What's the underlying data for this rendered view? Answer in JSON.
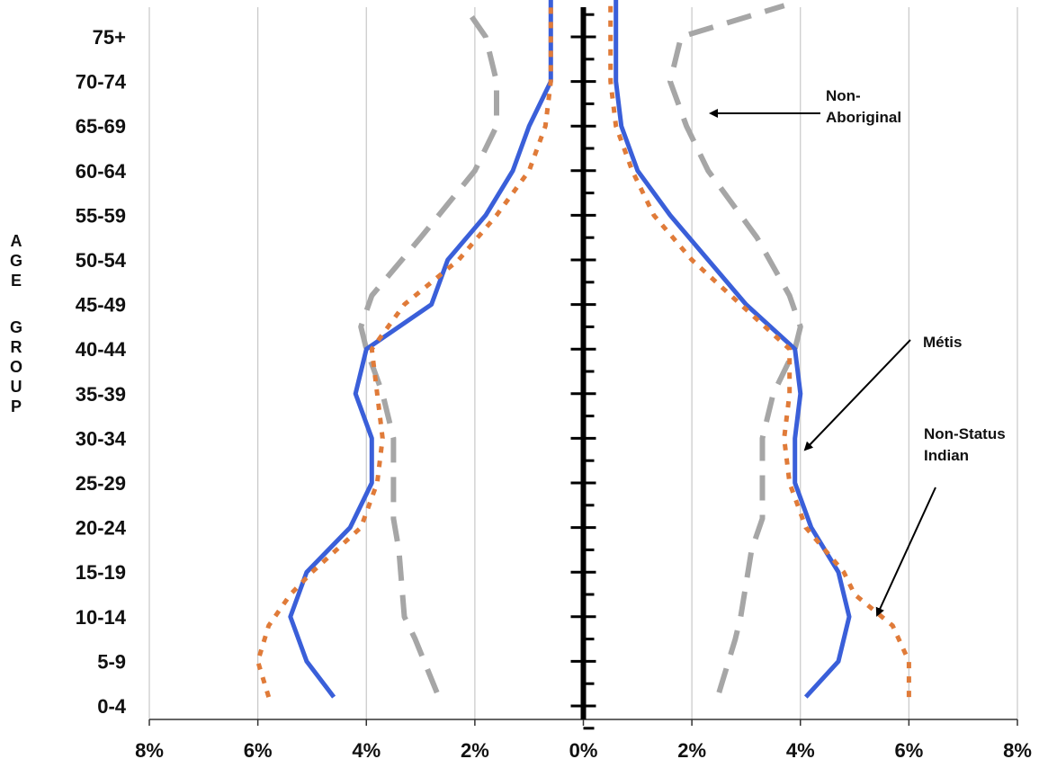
{
  "chart_data": {
    "type": "line",
    "title": "",
    "ylabel": "AGE GROUP",
    "xlabel": "",
    "xlim": [
      -8,
      8
    ],
    "x_ticks": [
      "8%",
      "6%",
      "4%",
      "2%",
      "0%",
      "2%",
      "4%",
      "6%",
      "8%"
    ],
    "x_tick_values": [
      -8,
      -6,
      -4,
      -2,
      0,
      2,
      4,
      6,
      8
    ],
    "categories": [
      "0-4",
      "5-9",
      "10-14",
      "15-19",
      "20-24",
      "25-29",
      "30-34",
      "35-39",
      "40-44",
      "45-49",
      "50-54",
      "55-59",
      "60-64",
      "65-69",
      "70-74",
      "75+"
    ],
    "grid": "vertical",
    "series": [
      {
        "name": "Non-Aboriginal",
        "style": "dashed",
        "color": "#a6a6a6",
        "left": [
          [
            0.3,
            -2.7
          ],
          [
            1.5,
            -3.1
          ],
          [
            2.0,
            -3.3
          ],
          [
            3.5,
            -3.4
          ],
          [
            4.2,
            -3.5
          ],
          [
            5.0,
            -3.5
          ],
          [
            6.0,
            -3.5
          ],
          [
            7.0,
            -3.7
          ],
          [
            8.0,
            -4.0
          ],
          [
            8.5,
            -4.1
          ],
          [
            9.2,
            -3.9
          ],
          [
            10.5,
            -3.0
          ],
          [
            12.0,
            -2.0
          ],
          [
            13.0,
            -1.6
          ],
          [
            14.0,
            -1.6
          ],
          [
            15.0,
            -1.8
          ],
          [
            15.7,
            -2.2
          ]
        ],
        "right": [
          [
            0.3,
            2.5
          ],
          [
            1.5,
            2.8
          ],
          [
            2.0,
            2.9
          ],
          [
            3.5,
            3.1
          ],
          [
            4.2,
            3.3
          ],
          [
            5.0,
            3.3
          ],
          [
            6.0,
            3.3
          ],
          [
            7.0,
            3.5
          ],
          [
            8.0,
            3.9
          ],
          [
            8.5,
            4.0
          ],
          [
            9.2,
            3.8
          ],
          [
            10.5,
            3.2
          ],
          [
            12.0,
            2.3
          ],
          [
            13.0,
            1.9
          ],
          [
            14.0,
            1.6
          ],
          [
            15.0,
            1.8
          ],
          [
            15.7,
            3.7
          ]
        ]
      },
      {
        "name": "Métis",
        "style": "solid",
        "color": "#3a5fd9",
        "left": [
          [
            0.2,
            -4.6
          ],
          [
            1.0,
            -5.1
          ],
          [
            2.0,
            -5.4
          ],
          [
            3.0,
            -5.1
          ],
          [
            4.0,
            -4.3
          ],
          [
            5.0,
            -3.9
          ],
          [
            6.0,
            -3.9
          ],
          [
            7.0,
            -4.2
          ],
          [
            8.0,
            -4.0
          ],
          [
            9.0,
            -2.8
          ],
          [
            10.0,
            -2.5
          ],
          [
            11.0,
            -1.8
          ],
          [
            12.0,
            -1.3
          ],
          [
            13.0,
            -1.0
          ],
          [
            14.0,
            -0.6
          ],
          [
            15.0,
            -0.6
          ],
          [
            15.9,
            -0.6
          ]
        ],
        "right": [
          [
            0.2,
            4.1
          ],
          [
            1.0,
            4.7
          ],
          [
            2.0,
            4.9
          ],
          [
            3.0,
            4.7
          ],
          [
            4.0,
            4.2
          ],
          [
            5.0,
            3.9
          ],
          [
            6.0,
            3.9
          ],
          [
            7.0,
            4.0
          ],
          [
            8.0,
            3.9
          ],
          [
            9.0,
            3.0
          ],
          [
            10.0,
            2.3
          ],
          [
            11.0,
            1.6
          ],
          [
            12.0,
            1.0
          ],
          [
            13.0,
            0.7
          ],
          [
            14.0,
            0.6
          ],
          [
            15.0,
            0.6
          ],
          [
            15.9,
            0.6
          ]
        ]
      },
      {
        "name": "Non-Status Indian",
        "style": "dotted",
        "color": "#e07b39",
        "left": [
          [
            0.2,
            -5.8
          ],
          [
            1.0,
            -6.0
          ],
          [
            1.8,
            -5.8
          ],
          [
            2.5,
            -5.4
          ],
          [
            3.0,
            -5.0
          ],
          [
            4.0,
            -4.1
          ],
          [
            5.0,
            -3.8
          ],
          [
            6.0,
            -3.7
          ],
          [
            7.0,
            -3.8
          ],
          [
            8.0,
            -3.9
          ],
          [
            9.0,
            -3.3
          ],
          [
            10.0,
            -2.3
          ],
          [
            11.0,
            -1.6
          ],
          [
            12.0,
            -1.0
          ],
          [
            13.0,
            -0.7
          ],
          [
            14.0,
            -0.6
          ],
          [
            15.0,
            -0.6
          ],
          [
            15.9,
            -0.6
          ]
        ],
        "right": [
          [
            0.2,
            6.0
          ],
          [
            1.0,
            6.0
          ],
          [
            1.8,
            5.7
          ],
          [
            2.5,
            5.0
          ],
          [
            3.0,
            4.8
          ],
          [
            4.0,
            4.1
          ],
          [
            5.0,
            3.8
          ],
          [
            6.0,
            3.7
          ],
          [
            7.0,
            3.8
          ],
          [
            8.0,
            3.8
          ],
          [
            9.0,
            2.9
          ],
          [
            10.0,
            2.0
          ],
          [
            11.0,
            1.3
          ],
          [
            12.0,
            0.9
          ],
          [
            13.0,
            0.6
          ],
          [
            14.0,
            0.5
          ],
          [
            15.0,
            0.5
          ],
          [
            15.9,
            0.5
          ]
        ]
      }
    ],
    "annotations": [
      {
        "lines": [
          "Non-",
          "Aboriginal"
        ],
        "series": "Non-Aboriginal"
      },
      {
        "lines": [
          "Métis"
        ],
        "series": "Métis"
      },
      {
        "lines": [
          "Non-Status",
          "Indian"
        ],
        "series": "Non-Status Indian"
      }
    ]
  }
}
